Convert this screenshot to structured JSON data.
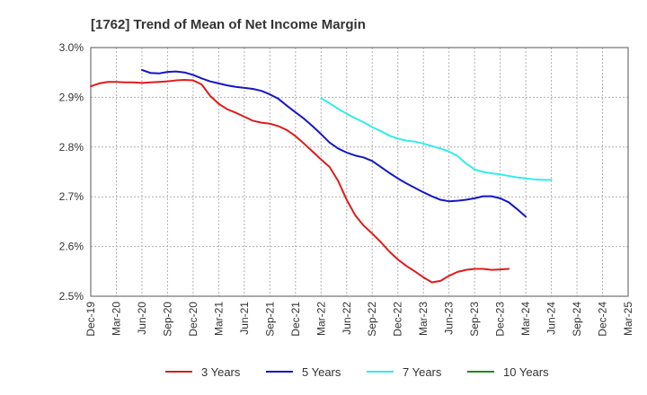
{
  "chart_data": {
    "type": "line",
    "title": "[1762]  Trend of Mean of Net Income Margin",
    "xlabel": "",
    "ylabel": "",
    "x_tick_labels": [
      "Dec-19",
      "Mar-20",
      "Jun-20",
      "Sep-20",
      "Dec-20",
      "Mar-21",
      "Jun-21",
      "Sep-21",
      "Dec-21",
      "Mar-22",
      "Jun-22",
      "Sep-22",
      "Dec-22",
      "Mar-23",
      "Jun-23",
      "Sep-23",
      "Dec-23",
      "Mar-24",
      "Jun-24",
      "Sep-24",
      "Dec-24",
      "Mar-25"
    ],
    "y_ticks": [
      2.5,
      2.6,
      2.7,
      2.8,
      2.9,
      3.0
    ],
    "y_tick_labels": [
      "2.5%",
      "2.6%",
      "2.7%",
      "2.8%",
      "2.9%",
      "3.0%"
    ],
    "ylim": [
      2.5,
      3.0
    ],
    "grid": true,
    "legend_position": "bottom",
    "series": [
      {
        "name": "3 Years",
        "color": "#dd1c1c",
        "start_index": 0,
        "values": [
          2.922,
          2.928,
          2.931,
          2.931,
          2.93,
          2.93,
          2.929,
          2.93,
          2.931,
          2.932,
          2.934,
          2.935,
          2.934,
          2.926,
          2.903,
          2.887,
          2.876,
          2.869,
          2.861,
          2.853,
          2.849,
          2.847,
          2.842,
          2.834,
          2.822,
          2.807,
          2.791,
          2.775,
          2.76,
          2.732,
          2.694,
          2.663,
          2.642,
          2.626,
          2.609,
          2.59,
          2.574,
          2.561,
          2.55,
          2.538,
          2.528,
          2.531,
          2.541,
          2.549,
          2.553,
          2.555,
          2.555,
          2.553,
          2.554,
          2.555
        ]
      },
      {
        "name": "5 Years",
        "color": "#1515c8",
        "start_index": 6,
        "values": [
          2.955,
          2.949,
          2.948,
          2.951,
          2.952,
          2.95,
          2.945,
          2.938,
          2.932,
          2.928,
          2.924,
          2.921,
          2.919,
          2.917,
          2.913,
          2.906,
          2.897,
          2.883,
          2.87,
          2.857,
          2.842,
          2.826,
          2.809,
          2.797,
          2.789,
          2.783,
          2.779,
          2.772,
          2.76,
          2.748,
          2.737,
          2.727,
          2.718,
          2.709,
          2.701,
          2.694,
          2.691,
          2.692,
          2.694,
          2.697,
          2.701,
          2.701,
          2.697,
          2.689,
          2.675,
          2.66
        ]
      },
      {
        "name": "7 Years",
        "color": "#33ecec",
        "start_index": 27,
        "values": [
          2.898,
          2.888,
          2.877,
          2.867,
          2.858,
          2.85,
          2.84,
          2.832,
          2.823,
          2.817,
          2.813,
          2.811,
          2.807,
          2.802,
          2.797,
          2.791,
          2.782,
          2.767,
          2.755,
          2.75,
          2.747,
          2.745,
          2.742,
          2.739,
          2.737,
          2.735,
          2.734,
          2.734
        ]
      },
      {
        "name": "10 Years",
        "color": "#1a8c1a",
        "start_index": 0,
        "values": []
      }
    ]
  }
}
